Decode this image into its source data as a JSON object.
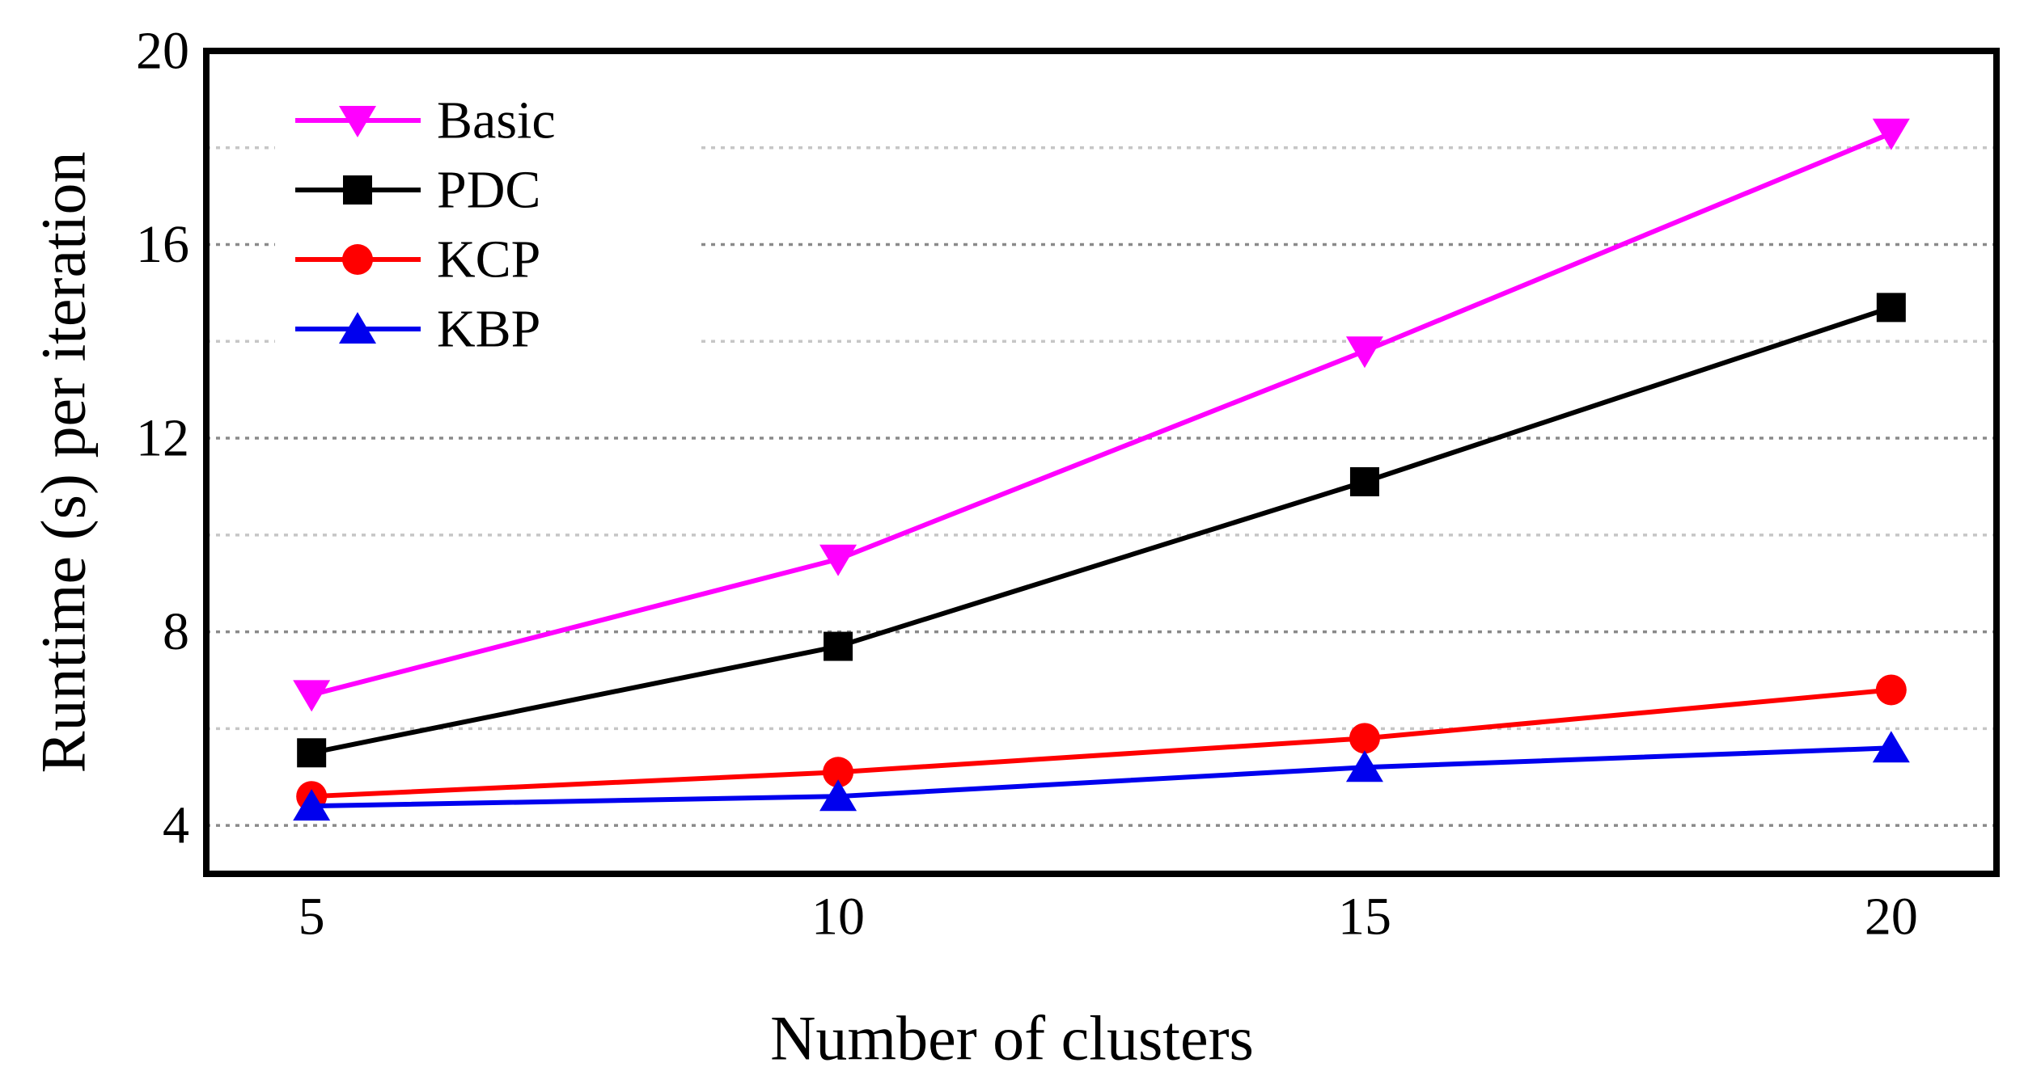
{
  "chart_data": {
    "type": "line",
    "title": "",
    "xlabel": "Number of clusters",
    "ylabel": "Runtime (s) per iteration",
    "x": [
      5,
      10,
      15,
      20
    ],
    "xlim": [
      4,
      21
    ],
    "ylim": [
      3,
      20
    ],
    "xticks": [
      5,
      10,
      15,
      20
    ],
    "yticks": [
      4,
      8,
      12,
      16,
      20
    ],
    "major_gridlines_y": [
      4,
      8,
      12,
      16
    ],
    "minor_gridlines_y": [
      6,
      10,
      14,
      18
    ],
    "grid_style": "horizontal dotted lines",
    "legend_position": "upper-left-inside",
    "series": [
      {
        "name": "Basic",
        "color": "#FF00FF",
        "marker": "triangle-down",
        "values": [
          6.7,
          9.5,
          13.8,
          18.3
        ]
      },
      {
        "name": "PDC",
        "color": "#000000",
        "marker": "square",
        "values": [
          5.5,
          7.7,
          11.1,
          14.7
        ]
      },
      {
        "name": "KCP",
        "color": "#FF0000",
        "marker": "circle",
        "values": [
          4.6,
          5.1,
          5.8,
          6.8
        ]
      },
      {
        "name": "KBP",
        "color": "#0000EE",
        "marker": "triangle-up",
        "values": [
          4.4,
          4.6,
          5.2,
          5.6
        ]
      }
    ],
    "colors": {
      "axis": "#000000",
      "major_grid": "#8a8a8a",
      "minor_grid": "#c6c6c6",
      "background": "#FFFFFF"
    }
  }
}
